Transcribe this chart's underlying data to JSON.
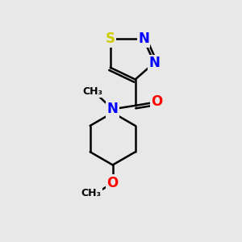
{
  "background_color": "#e8e8e8",
  "atom_colors": {
    "S": "#cccc00",
    "N": "#0000ff",
    "O": "#ff0000",
    "C": "#000000"
  },
  "bond_color": "#000000",
  "bond_width": 1.8,
  "figsize": [
    3.0,
    3.0
  ],
  "dpi": 100,
  "xlim": [
    0,
    10
  ],
  "ylim": [
    0,
    10
  ]
}
